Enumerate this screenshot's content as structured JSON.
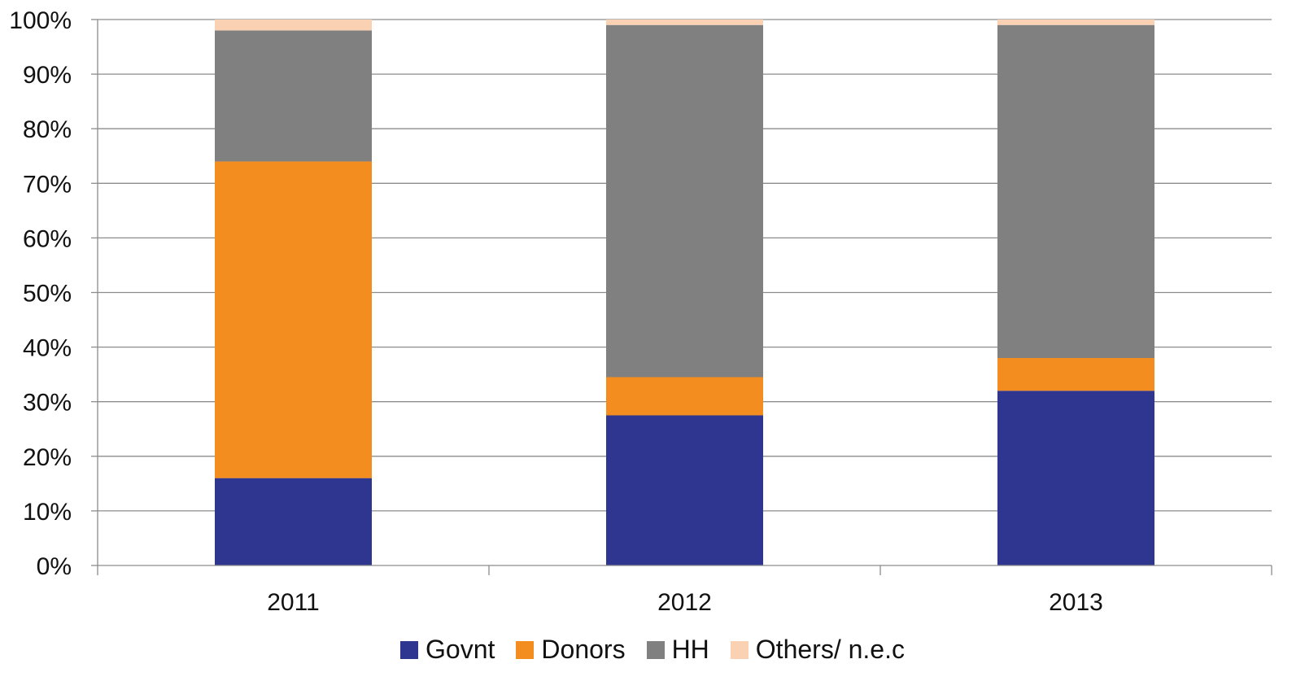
{
  "chart_data": {
    "type": "bar",
    "stacked": true,
    "categories": [
      "2011",
      "2012",
      "2013"
    ],
    "series": [
      {
        "name": "Govnt",
        "color": "#2E3690",
        "values": [
          16,
          27.5,
          32
        ]
      },
      {
        "name": "Donors",
        "color": "#F38D1F",
        "values": [
          58,
          7,
          6
        ]
      },
      {
        "name": "HH",
        "color": "#808080",
        "values": [
          24,
          64.5,
          61
        ]
      },
      {
        "name": "Others/ n.e.c",
        "color": "#FAD1B3",
        "values": [
          2,
          1,
          1
        ]
      }
    ],
    "y_ticks": [
      "0%",
      "10%",
      "20%",
      "30%",
      "40%",
      "50%",
      "60%",
      "70%",
      "80%",
      "90%",
      "100%"
    ],
    "ylim": [
      0,
      100
    ],
    "grid": true,
    "legend_position": "bottom",
    "title": "",
    "xlabel": "",
    "ylabel": ""
  }
}
